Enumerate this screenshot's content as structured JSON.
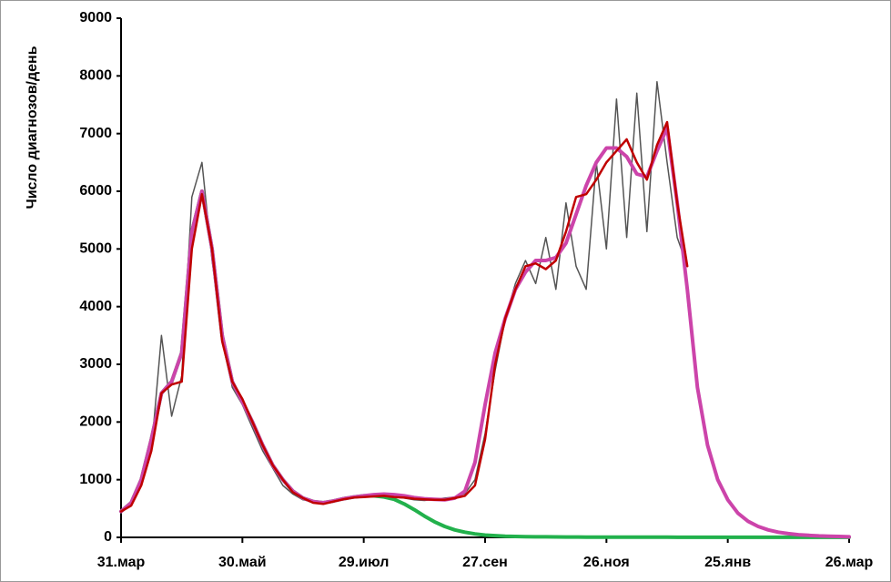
{
  "chart_data": {
    "type": "line",
    "y_label": "Число диагнозов/день",
    "categories": [
      "31.мар",
      null,
      null,
      null,
      null,
      null,
      null,
      null,
      null,
      null,
      null,
      null,
      "30.май",
      null,
      null,
      null,
      null,
      null,
      null,
      null,
      null,
      null,
      null,
      null,
      "29.июл",
      null,
      null,
      null,
      null,
      null,
      null,
      null,
      null,
      null,
      null,
      null,
      "27.сен",
      null,
      null,
      null,
      null,
      null,
      null,
      null,
      null,
      null,
      null,
      null,
      "26.ноя",
      null,
      null,
      null,
      null,
      null,
      null,
      null,
      null,
      null,
      null,
      null,
      "25.янв",
      null,
      null,
      null,
      null,
      null,
      null,
      null,
      null,
      null,
      null,
      null,
      "26.мар"
    ],
    "series": [
      {
        "color": "#555555",
        "width": 1.5,
        "values": [
          450,
          600,
          900,
          1500,
          3500,
          2100,
          2800,
          5900,
          6500,
          4800,
          3600,
          2600,
          2300,
          1900,
          1500,
          1200,
          900,
          750,
          650,
          620,
          580,
          640,
          690,
          700,
          700,
          710,
          720,
          700,
          680,
          650,
          640,
          660,
          680,
          700,
          760,
          1000,
          1800,
          2900,
          3800,
          4400,
          4800,
          4400,
          5200,
          4300,
          5800,
          4700,
          4300,
          6500,
          5000,
          7600,
          5200,
          7700,
          5300,
          7900,
          6500,
          5200,
          4700,
          null,
          null,
          null,
          null,
          null,
          null,
          null,
          null,
          null,
          null,
          null,
          null,
          null,
          null,
          null,
          null
        ]
      },
      {
        "color": "#22b14c",
        "width": 4,
        "values": [
          450,
          600,
          1000,
          1700,
          2500,
          2700,
          3200,
          5300,
          6000,
          5000,
          3500,
          2700,
          2350,
          2000,
          1600,
          1250,
          1000,
          800,
          680,
          620,
          600,
          630,
          670,
          700,
          720,
          720,
          700,
          660,
          580,
          480,
          370,
          270,
          190,
          130,
          90,
          60,
          40,
          30,
          20,
          15,
          12,
          10,
          9,
          8,
          7,
          6,
          5,
          5,
          4,
          4,
          4,
          3,
          3,
          3,
          3,
          2,
          2,
          2,
          2,
          2,
          2,
          1,
          1,
          1,
          1,
          1,
          1,
          1,
          1,
          1,
          1,
          1,
          1
        ]
      },
      {
        "color": "#cc44aa",
        "width": 4,
        "values": [
          450,
          600,
          1000,
          1700,
          2500,
          2700,
          3200,
          5300,
          6000,
          5000,
          3500,
          2700,
          2350,
          2000,
          1600,
          1250,
          1000,
          800,
          680,
          620,
          600,
          630,
          670,
          700,
          720,
          740,
          750,
          740,
          720,
          690,
          670,
          660,
          650,
          680,
          800,
          1300,
          2300,
          3200,
          3800,
          4300,
          4600,
          4800,
          4800,
          4850,
          5100,
          5600,
          6100,
          6500,
          6750,
          6750,
          6600,
          6300,
          6250,
          6700,
          7100,
          5800,
          4300,
          2600,
          1600,
          1000,
          650,
          420,
          280,
          190,
          130,
          90,
          65,
          45,
          35,
          25,
          20,
          15,
          10
        ]
      },
      {
        "color": "#c00000",
        "width": 2.5,
        "values": [
          450,
          550,
          900,
          1500,
          2500,
          2650,
          2700,
          5000,
          5950,
          5000,
          3400,
          2700,
          2400,
          2000,
          1600,
          1250,
          1000,
          780,
          680,
          600,
          580,
          620,
          660,
          690,
          700,
          710,
          720,
          700,
          690,
          670,
          660,
          650,
          650,
          680,
          720,
          900,
          1700,
          3000,
          3800,
          4300,
          4700,
          4750,
          4650,
          4800,
          5300,
          5900,
          5950,
          6200,
          6500,
          6700,
          6900,
          6500,
          6200,
          6800,
          7200,
          5800,
          4700,
          null,
          null,
          null,
          null,
          null,
          null,
          null,
          null,
          null,
          null,
          null,
          null,
          null,
          null,
          null,
          null
        ]
      }
    ],
    "ylim": [
      0,
      9000
    ],
    "yticks": [
      0,
      1000,
      2000,
      3000,
      4000,
      5000,
      6000,
      7000,
      8000,
      9000
    ],
    "grid": false
  }
}
